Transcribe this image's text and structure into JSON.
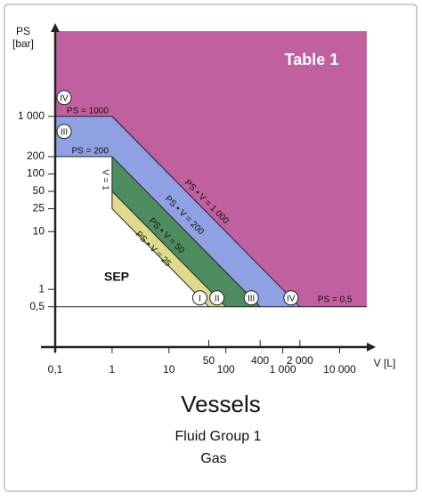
{
  "chart_data": {
    "type": "region",
    "title": "Vessels",
    "subtitle": [
      "Fluid Group 1",
      "Gas"
    ],
    "panel_label": "Table 1",
    "x_label": "V [L]",
    "y_label": [
      "PS",
      "[bar]"
    ],
    "xscale": "log",
    "yscale": "log",
    "xlim": [
      0.1,
      30000
    ],
    "ylim": [
      0.1,
      30000
    ],
    "xticks": [
      {
        "value": 0.1,
        "label": "0,1"
      },
      1,
      10,
      50,
      100,
      400,
      {
        "value": 1000,
        "label": "1 000"
      },
      {
        "value": 2000,
        "label": "2 000"
      },
      {
        "value": 10000,
        "label": "10 000"
      }
    ],
    "yticks": [
      {
        "value": 0.5,
        "label": "0,5"
      },
      1,
      10,
      25,
      50,
      100,
      200,
      {
        "value": 1000,
        "label": "1 000"
      }
    ],
    "limits": {
      "ps": [
        0.5,
        200,
        1000
      ],
      "v": 1,
      "psv": [
        25,
        50,
        200,
        1000
      ]
    },
    "limit_labels": {
      "ps": [
        "PS = 0,5",
        "PS = 200",
        "PS = 1000"
      ],
      "v": "V = 1",
      "psv": [
        "PS • V = 25",
        "PS • V = 50",
        "PS • V = 200",
        "PS • V = 1 000"
      ]
    },
    "categories": [
      "I",
      "II",
      "III",
      "IV"
    ],
    "colors": [
      "#dedc8c",
      "#4e8c5f",
      "#8fa1e2",
      "#c1609f"
    ],
    "safe_zone": "SEP",
    "safe_color": "#ffffff"
  }
}
